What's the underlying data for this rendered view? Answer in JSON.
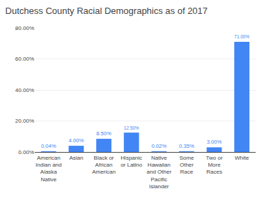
{
  "chart_data": {
    "type": "bar",
    "title": "Dutchess County Racial Demographics as of 2017",
    "categories": [
      "American\nIndian and\nAlaska\nNative",
      "Asian",
      "Black or\nAfrican\nAmerican",
      "Hispanic\nor Latino",
      "Native\nHawaiian\nand Other\nPacific\nIslander",
      "Some\nOther\nRace",
      "Two or\nMore\nRaces",
      "White"
    ],
    "values": [
      0.04,
      4.0,
      8.5,
      12.5,
      0.02,
      0.35,
      3.0,
      71.0
    ],
    "value_labels": [
      "0.04%",
      "4.00%",
      "8.50%",
      "12.50%",
      "0.02%",
      "0.35%",
      "3.00%",
      "71.00%"
    ],
    "data_labels": true,
    "color": "#4285f4",
    "ylim": [
      0,
      80
    ],
    "yticks": [
      {
        "value": 0,
        "label": "0.00%"
      },
      {
        "value": 20,
        "label": "20.00%"
      },
      {
        "value": 40,
        "label": "40.00%"
      },
      {
        "value": 60,
        "label": "60.00%"
      },
      {
        "value": 80,
        "label": "80.00%"
      }
    ],
    "grid": true
  }
}
